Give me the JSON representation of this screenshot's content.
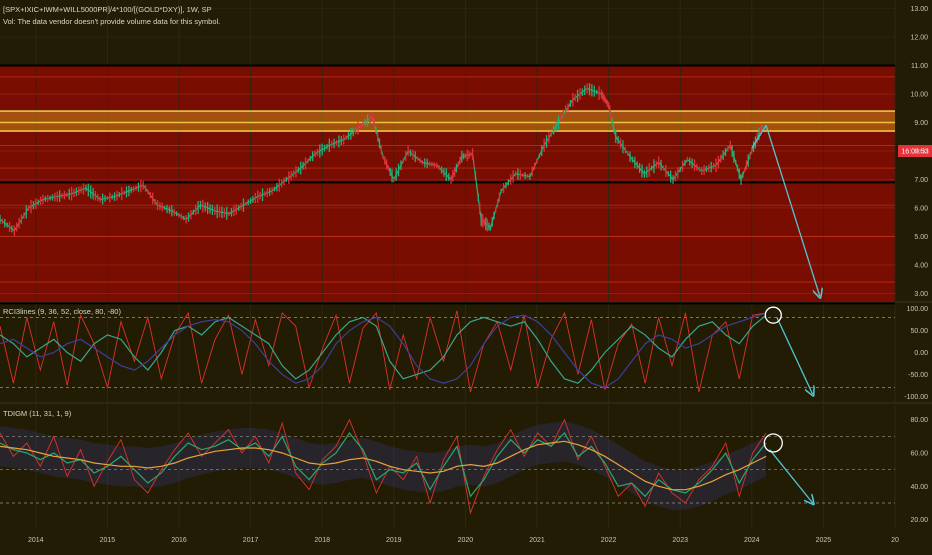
{
  "header": {
    "symbol": "[SPX+IXIC+IWM+WILL5000PR]/4*100/[(GOLD*DXY)], 1W, SP",
    "vol_note": "Vol: The data vendor doesn't provide volume data for this symbol."
  },
  "price_pane": {
    "price_badge": "16:09:53",
    "colors": {
      "background": "#7a0d02",
      "band_highlight": "#f5e15a",
      "arrow": "#4fc6d6",
      "up": "#20b07a",
      "down": "#e0303a"
    }
  },
  "rci_pane": {
    "legend": "RCI3lines (9, 36, 52, close, 80, -80)"
  },
  "tdi_pane": {
    "legend": "TDIGM (11, 31, 1, 9)"
  },
  "chart_data": [
    {
      "type": "line",
      "pane": "price",
      "ylim": [
        2.7,
        13.3
      ],
      "y_ticks": [
        "13.00",
        "12.00",
        "11.00",
        "10.00",
        "9.00",
        "8.00",
        "7.00",
        "6.00",
        "5.00",
        "4.00",
        "3.00"
      ],
      "x_ticks": [
        "2014",
        "2015",
        "2016",
        "2017",
        "2018",
        "2019",
        "2020",
        "2021",
        "2022",
        "2023",
        "2024",
        "2025",
        "20"
      ],
      "xlim": [
        2013.5,
        2026.0
      ],
      "series": [
        {
          "x": [
            2013.5,
            2013.7,
            2013.9,
            2014.1,
            2014.3,
            2014.5,
            2014.7,
            2014.9,
            2015.1,
            2015.3,
            2015.5,
            2015.7,
            2015.9,
            2016.1,
            2016.3,
            2016.5,
            2016.7,
            2016.9,
            2017.1,
            2017.3,
            2017.5,
            2017.7,
            2017.9,
            2018.1,
            2018.3,
            2018.5,
            2018.7,
            2018.85,
            2019.0,
            2019.2,
            2019.4,
            2019.6,
            2019.8,
            2019.95,
            2020.1,
            2020.22,
            2020.35,
            2020.5,
            2020.7,
            2020.9,
            2021.1,
            2021.3,
            2021.5,
            2021.7,
            2021.9,
            2022.0,
            2022.1,
            2022.3,
            2022.5,
            2022.7,
            2022.9,
            2023.1,
            2023.3,
            2023.5,
            2023.7,
            2023.85,
            2024.0,
            2024.15
          ],
          "values": [
            5.6,
            5.2,
            6.0,
            6.3,
            6.4,
            6.5,
            6.7,
            6.3,
            6.4,
            6.6,
            6.8,
            6.1,
            5.9,
            5.6,
            6.1,
            5.9,
            5.8,
            6.1,
            6.4,
            6.6,
            7.0,
            7.4,
            7.9,
            8.2,
            8.4,
            8.8,
            9.2,
            7.8,
            7.0,
            8.0,
            7.6,
            7.5,
            7.0,
            7.8,
            7.9,
            5.6,
            5.3,
            6.6,
            7.2,
            7.1,
            8.2,
            9.0,
            9.8,
            10.2,
            10.0,
            9.6,
            8.5,
            7.8,
            7.2,
            7.6,
            7.0,
            7.7,
            7.3,
            7.5,
            8.2,
            7.0,
            8.0,
            8.9
          ]
        }
      ],
      "horizontal_levels": [
        11.0,
        9.4,
        9.0,
        8.7,
        6.9,
        2.65
      ],
      "projection": {
        "from": [
          2024.2,
          8.9
        ],
        "to": [
          2024.95,
          2.9
        ]
      }
    },
    {
      "type": "line",
      "pane": "rci",
      "ylim": [
        -115,
        115
      ],
      "y_ticks": [
        "100.00",
        "50.00",
        "0.00",
        "-50.00",
        "-100.00"
      ],
      "levels": [
        80,
        -80
      ],
      "series": [
        {
          "name": "short",
          "color": "#e0302a",
          "values": [
            60,
            -70,
            80,
            -40,
            70,
            -75,
            85,
            20,
            -80,
            70,
            -20,
            80,
            -60,
            40,
            90,
            -70,
            30,
            85,
            -50,
            75,
            -30,
            90,
            60,
            -80,
            10,
            85,
            -70,
            55,
            90,
            -85,
            40,
            -60,
            80,
            -20,
            95,
            -90,
            20,
            70,
            -40,
            85,
            -80,
            30,
            90,
            -50,
            75,
            -85,
            20,
            65,
            -70,
            80,
            -30,
            90,
            -90,
            40,
            70,
            -60,
            85,
            90
          ]
        },
        {
          "name": "mid",
          "color": "#3aa58a",
          "values": [
            40,
            20,
            -10,
            10,
            30,
            0,
            -20,
            20,
            40,
            30,
            -10,
            -40,
            0,
            50,
            60,
            40,
            70,
            80,
            60,
            40,
            20,
            -30,
            -60,
            -40,
            0,
            40,
            70,
            80,
            60,
            -20,
            -60,
            -50,
            -40,
            -10,
            40,
            70,
            80,
            70,
            60,
            70,
            30,
            -20,
            -60,
            -70,
            -40,
            0,
            30,
            60,
            40,
            10,
            -10,
            30,
            60,
            70,
            40,
            20,
            60,
            85
          ]
        },
        {
          "name": "long",
          "color": "#3b3f9a",
          "values": [
            20,
            30,
            10,
            -10,
            0,
            20,
            30,
            10,
            -10,
            -30,
            -40,
            -20,
            10,
            40,
            60,
            70,
            75,
            70,
            50,
            20,
            -20,
            -50,
            -70,
            -60,
            -30,
            20,
            50,
            70,
            80,
            60,
            20,
            -30,
            -60,
            -70,
            -60,
            -30,
            20,
            60,
            80,
            85,
            70,
            40,
            0,
            -40,
            -70,
            -80,
            -60,
            -20,
            20,
            40,
            30,
            10,
            20,
            40,
            60,
            70,
            80,
            90
          ]
        }
      ],
      "projection": {
        "from": [
          2024.35,
          80
        ],
        "to": [
          2024.85,
          -95
        ]
      }
    },
    {
      "type": "line",
      "pane": "tdi",
      "ylim": [
        15,
        90
      ],
      "y_ticks": [
        "80.00",
        "60.00",
        "40.00",
        "20.00"
      ],
      "levels": [
        70,
        50,
        30
      ],
      "series": [
        {
          "name": "price",
          "color": "#e0302a",
          "values": [
            72,
            58,
            66,
            52,
            70,
            46,
            62,
            40,
            55,
            68,
            44,
            36,
            50,
            62,
            72,
            58,
            66,
            74,
            60,
            70,
            54,
            78,
            48,
            38,
            56,
            64,
            80,
            60,
            36,
            52,
            44,
            58,
            30,
            56,
            70,
            24,
            46,
            62,
            74,
            58,
            72,
            64,
            80,
            56,
            70,
            52,
            34,
            42,
            28,
            48,
            36,
            30,
            44,
            52,
            66,
            34,
            60,
            72
          ]
        },
        {
          "name": "signal",
          "color": "#2aa86a",
          "values": [
            66,
            62,
            60,
            56,
            60,
            54,
            56,
            48,
            52,
            58,
            50,
            42,
            48,
            58,
            66,
            62,
            64,
            68,
            62,
            66,
            58,
            70,
            52,
            44,
            54,
            60,
            72,
            62,
            44,
            50,
            48,
            54,
            38,
            52,
            64,
            34,
            44,
            58,
            68,
            60,
            68,
            64,
            72,
            58,
            64,
            54,
            40,
            42,
            34,
            44,
            38,
            36,
            42,
            50,
            60,
            42,
            56,
            66
          ]
        },
        {
          "name": "base",
          "color": "#e8a33a",
          "values": [
            64,
            63,
            62,
            60,
            58,
            57,
            56,
            54,
            53,
            52,
            52,
            51,
            52,
            54,
            57,
            59,
            61,
            62,
            63,
            63,
            62,
            60,
            57,
            54,
            53,
            54,
            56,
            57,
            55,
            52,
            50,
            49,
            48,
            49,
            52,
            53,
            52,
            54,
            58,
            62,
            65,
            66,
            67,
            65,
            62,
            58,
            53,
            48,
            43,
            40,
            38,
            38,
            40,
            43,
            47,
            50,
            54,
            58
          ]
        }
      ],
      "projection": {
        "from": [
          2024.25,
          62
        ],
        "to": [
          2024.85,
          30
        ]
      }
    }
  ]
}
